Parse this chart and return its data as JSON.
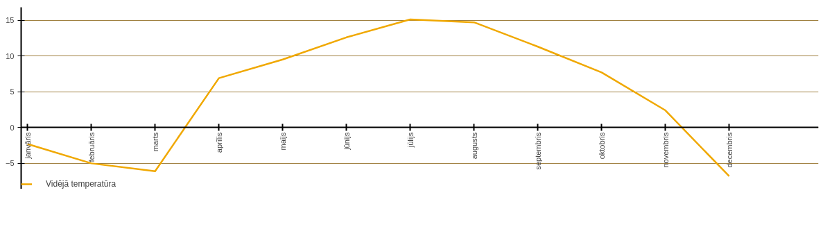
{
  "chart_data": {
    "type": "line",
    "categories": [
      "janvāris",
      "februāris",
      "marts",
      "aprīlis",
      "maijs",
      "jūnijs",
      "jūlijs",
      "augusts",
      "septembris",
      "oktobris",
      "novembris",
      "decembris"
    ],
    "series": [
      {
        "name": "Vidējā temperatūra",
        "color": "#f0a800",
        "values": [
          -2.3,
          -5.0,
          -6.1,
          6.9,
          9.5,
          12.6,
          15.1,
          14.7,
          11.3,
          7.7,
          2.4,
          -6.8
        ]
      }
    ],
    "ylim": [
      -8.6,
      16.8
    ],
    "yticks": [
      -5,
      0,
      5,
      10,
      15
    ],
    "grid": "y",
    "legend": "bottom left",
    "marker": "none",
    "line_style": "solid"
  }
}
